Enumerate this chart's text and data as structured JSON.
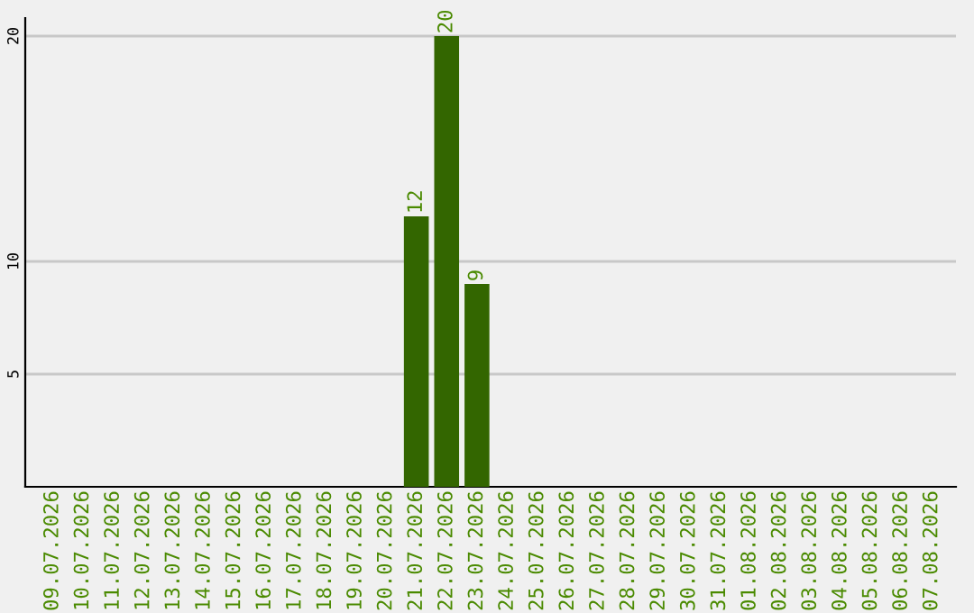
{
  "chart_data": {
    "type": "bar",
    "categories": [
      "09.07.2026",
      "10.07.2026",
      "11.07.2026",
      "12.07.2026",
      "13.07.2026",
      "14.07.2026",
      "15.07.2026",
      "16.07.2026",
      "17.07.2026",
      "18.07.2026",
      "19.07.2026",
      "20.07.2026",
      "21.07.2026",
      "22.07.2026",
      "23.07.2026",
      "24.07.2026",
      "25.07.2026",
      "26.07.2026",
      "27.07.2026",
      "28.07.2026",
      "29.07.2026",
      "30.07.2026",
      "31.07.2026",
      "01.08.2026",
      "02.08.2026",
      "03.08.2026",
      "04.08.2026",
      "05.08.2026",
      "06.08.2026",
      "07.08.2026"
    ],
    "values": [
      0,
      0,
      0,
      0,
      0,
      0,
      0,
      0,
      0,
      0,
      0,
      0,
      12,
      20,
      9,
      0,
      0,
      0,
      0,
      0,
      0,
      0,
      0,
      0,
      0,
      0,
      0,
      0,
      0,
      0
    ],
    "value_labels": [
      null,
      null,
      null,
      null,
      null,
      null,
      null,
      null,
      null,
      null,
      null,
      null,
      "12",
      "20",
      "9",
      null,
      null,
      null,
      null,
      null,
      null,
      null,
      null,
      null,
      null,
      null,
      null,
      null,
      null,
      null
    ],
    "color": "#336600",
    "ylim": [
      0,
      20.8
    ],
    "yticks": [
      5,
      10,
      20
    ],
    "grid": "y",
    "legend": false
  }
}
